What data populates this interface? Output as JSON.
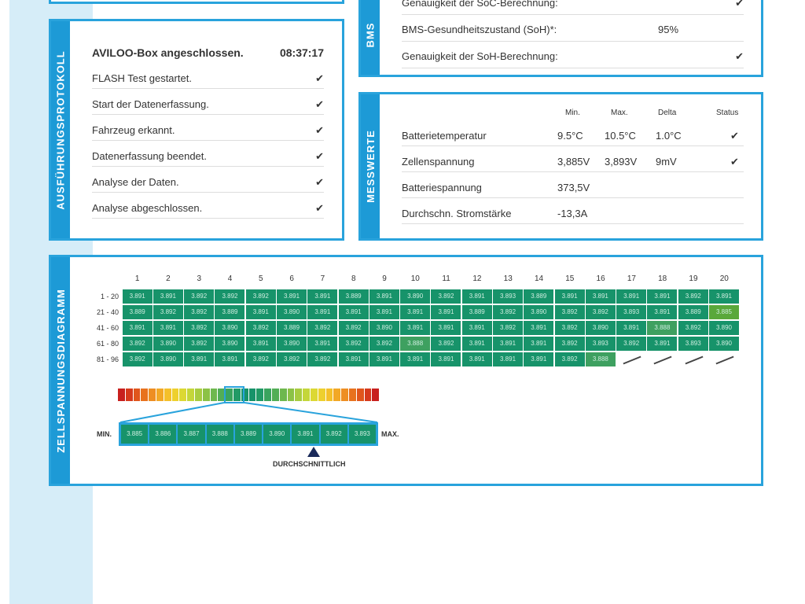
{
  "log": {
    "label": "AUSFÜHRUNGSPROTOKOLL",
    "title": "AVILOO-Box angeschlossen.",
    "time": "08:37:17",
    "items": [
      "FLASH Test gestartet.",
      "Start der Datenerfassung.",
      "Fahrzeug erkannt.",
      "Datenerfassung beendet.",
      "Analyse der Daten.",
      "Analyse abgeschlossen."
    ]
  },
  "bms": {
    "label": "BMS",
    "rows": [
      {
        "label": "Genauigkeit der SoC-Berechnung:",
        "value": "✔"
      },
      {
        "label": "BMS-Gesundheitszustand (SoH)*:",
        "value": "95%"
      },
      {
        "label": "Genauigkeit der SoH-Berechnung:",
        "value": "✔"
      }
    ]
  },
  "mess": {
    "label": "MESSWERTE",
    "headers": [
      "Min.",
      "Max.",
      "Delta",
      "Status"
    ],
    "rows": [
      {
        "label": "Batterietemperatur",
        "min": "9.5°C",
        "max": "10.5°C",
        "delta": "1.0°C",
        "status": "✔"
      },
      {
        "label": "Zellenspannung",
        "min": "3,885V",
        "max": "3,893V",
        "delta": "9mV",
        "status": "✔"
      },
      {
        "label": "Batteriespannung",
        "min": "373,5V",
        "max": "",
        "delta": "",
        "status": ""
      },
      {
        "label": "Durchschn. Stromstärke",
        "min": "-13,3A",
        "max": "",
        "delta": "",
        "status": ""
      }
    ]
  },
  "cells": {
    "label": "ZELLSPANNUNGSDIAGRAMM",
    "columns": [
      "1",
      "2",
      "3",
      "4",
      "5",
      "6",
      "7",
      "8",
      "9",
      "10",
      "11",
      "12",
      "13",
      "14",
      "15",
      "16",
      "17",
      "18",
      "19",
      "20"
    ],
    "rows": [
      {
        "label": "1 - 20",
        "values": [
          "3.891",
          "3.891",
          "3.892",
          "3.892",
          "3.892",
          "3.891",
          "3.891",
          "3.889",
          "3.891",
          "3.890",
          "3.892",
          "3.891",
          "3.893",
          "3.889",
          "3.891",
          "3.891",
          "3.891",
          "3.891",
          "3.892",
          "3.891"
        ]
      },
      {
        "label": "21 - 40",
        "values": [
          "3.889",
          "3.892",
          "3.892",
          "3.889",
          "3.891",
          "3.890",
          "3.891",
          "3.891",
          "3.891",
          "3.891",
          "3.891",
          "3.889",
          "3.892",
          "3.890",
          "3.892",
          "3.892",
          "3.893",
          "3.891",
          "3.889",
          "3.885"
        ]
      },
      {
        "label": "41 - 60",
        "values": [
          "3.891",
          "3.891",
          "3.892",
          "3.890",
          "3.892",
          "3.889",
          "3.892",
          "3.892",
          "3.890",
          "3.891",
          "3.891",
          "3.891",
          "3.892",
          "3.891",
          "3.892",
          "3.890",
          "3.891",
          "3.888",
          "3.892",
          "3.890"
        ]
      },
      {
        "label": "61 - 80",
        "values": [
          "3.892",
          "3.890",
          "3.892",
          "3.890",
          "3.891",
          "3.890",
          "3.891",
          "3.892",
          "3.892",
          "3.888",
          "3.892",
          "3.891",
          "3.891",
          "3.891",
          "3.892",
          "3.893",
          "3.892",
          "3.891",
          "3.893",
          "3.890"
        ]
      },
      {
        "label": "81 - 96",
        "values": [
          "3.892",
          "3.890",
          "3.891",
          "3.891",
          "3.892",
          "3.892",
          "3.892",
          "3.891",
          "3.891",
          "3.891",
          "3.891",
          "3.891",
          "3.891",
          "3.891",
          "3.892",
          "3.888"
        ]
      }
    ],
    "legend": {
      "min": "MIN.",
      "max": "MAX.",
      "avg": "DURCHSCHNITTLICH",
      "scale": [
        "3.885",
        "3.886",
        "3.887",
        "3.888",
        "3.889",
        "3.890",
        "3.891",
        "3.892",
        "3.893"
      ]
    }
  }
}
